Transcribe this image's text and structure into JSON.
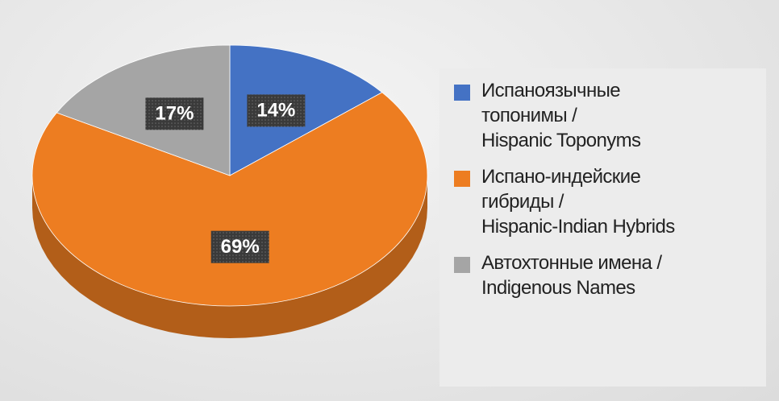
{
  "chart_data": {
    "type": "pie",
    "categories": [
      "Испаноязычные\nтопонимы /\nHispanic Toponyms",
      "Испано-индейские\nгибриды /\nHispanic-Indian Hybrids",
      "Автохтонные имена /\nIndigenous Names"
    ],
    "values": [
      14,
      69,
      17
    ],
    "value_labels": [
      "14%",
      "69%",
      "17%"
    ],
    "colors": [
      "#4472c4",
      "#ed7d21",
      "#a5a5a5"
    ],
    "legend": "right"
  }
}
